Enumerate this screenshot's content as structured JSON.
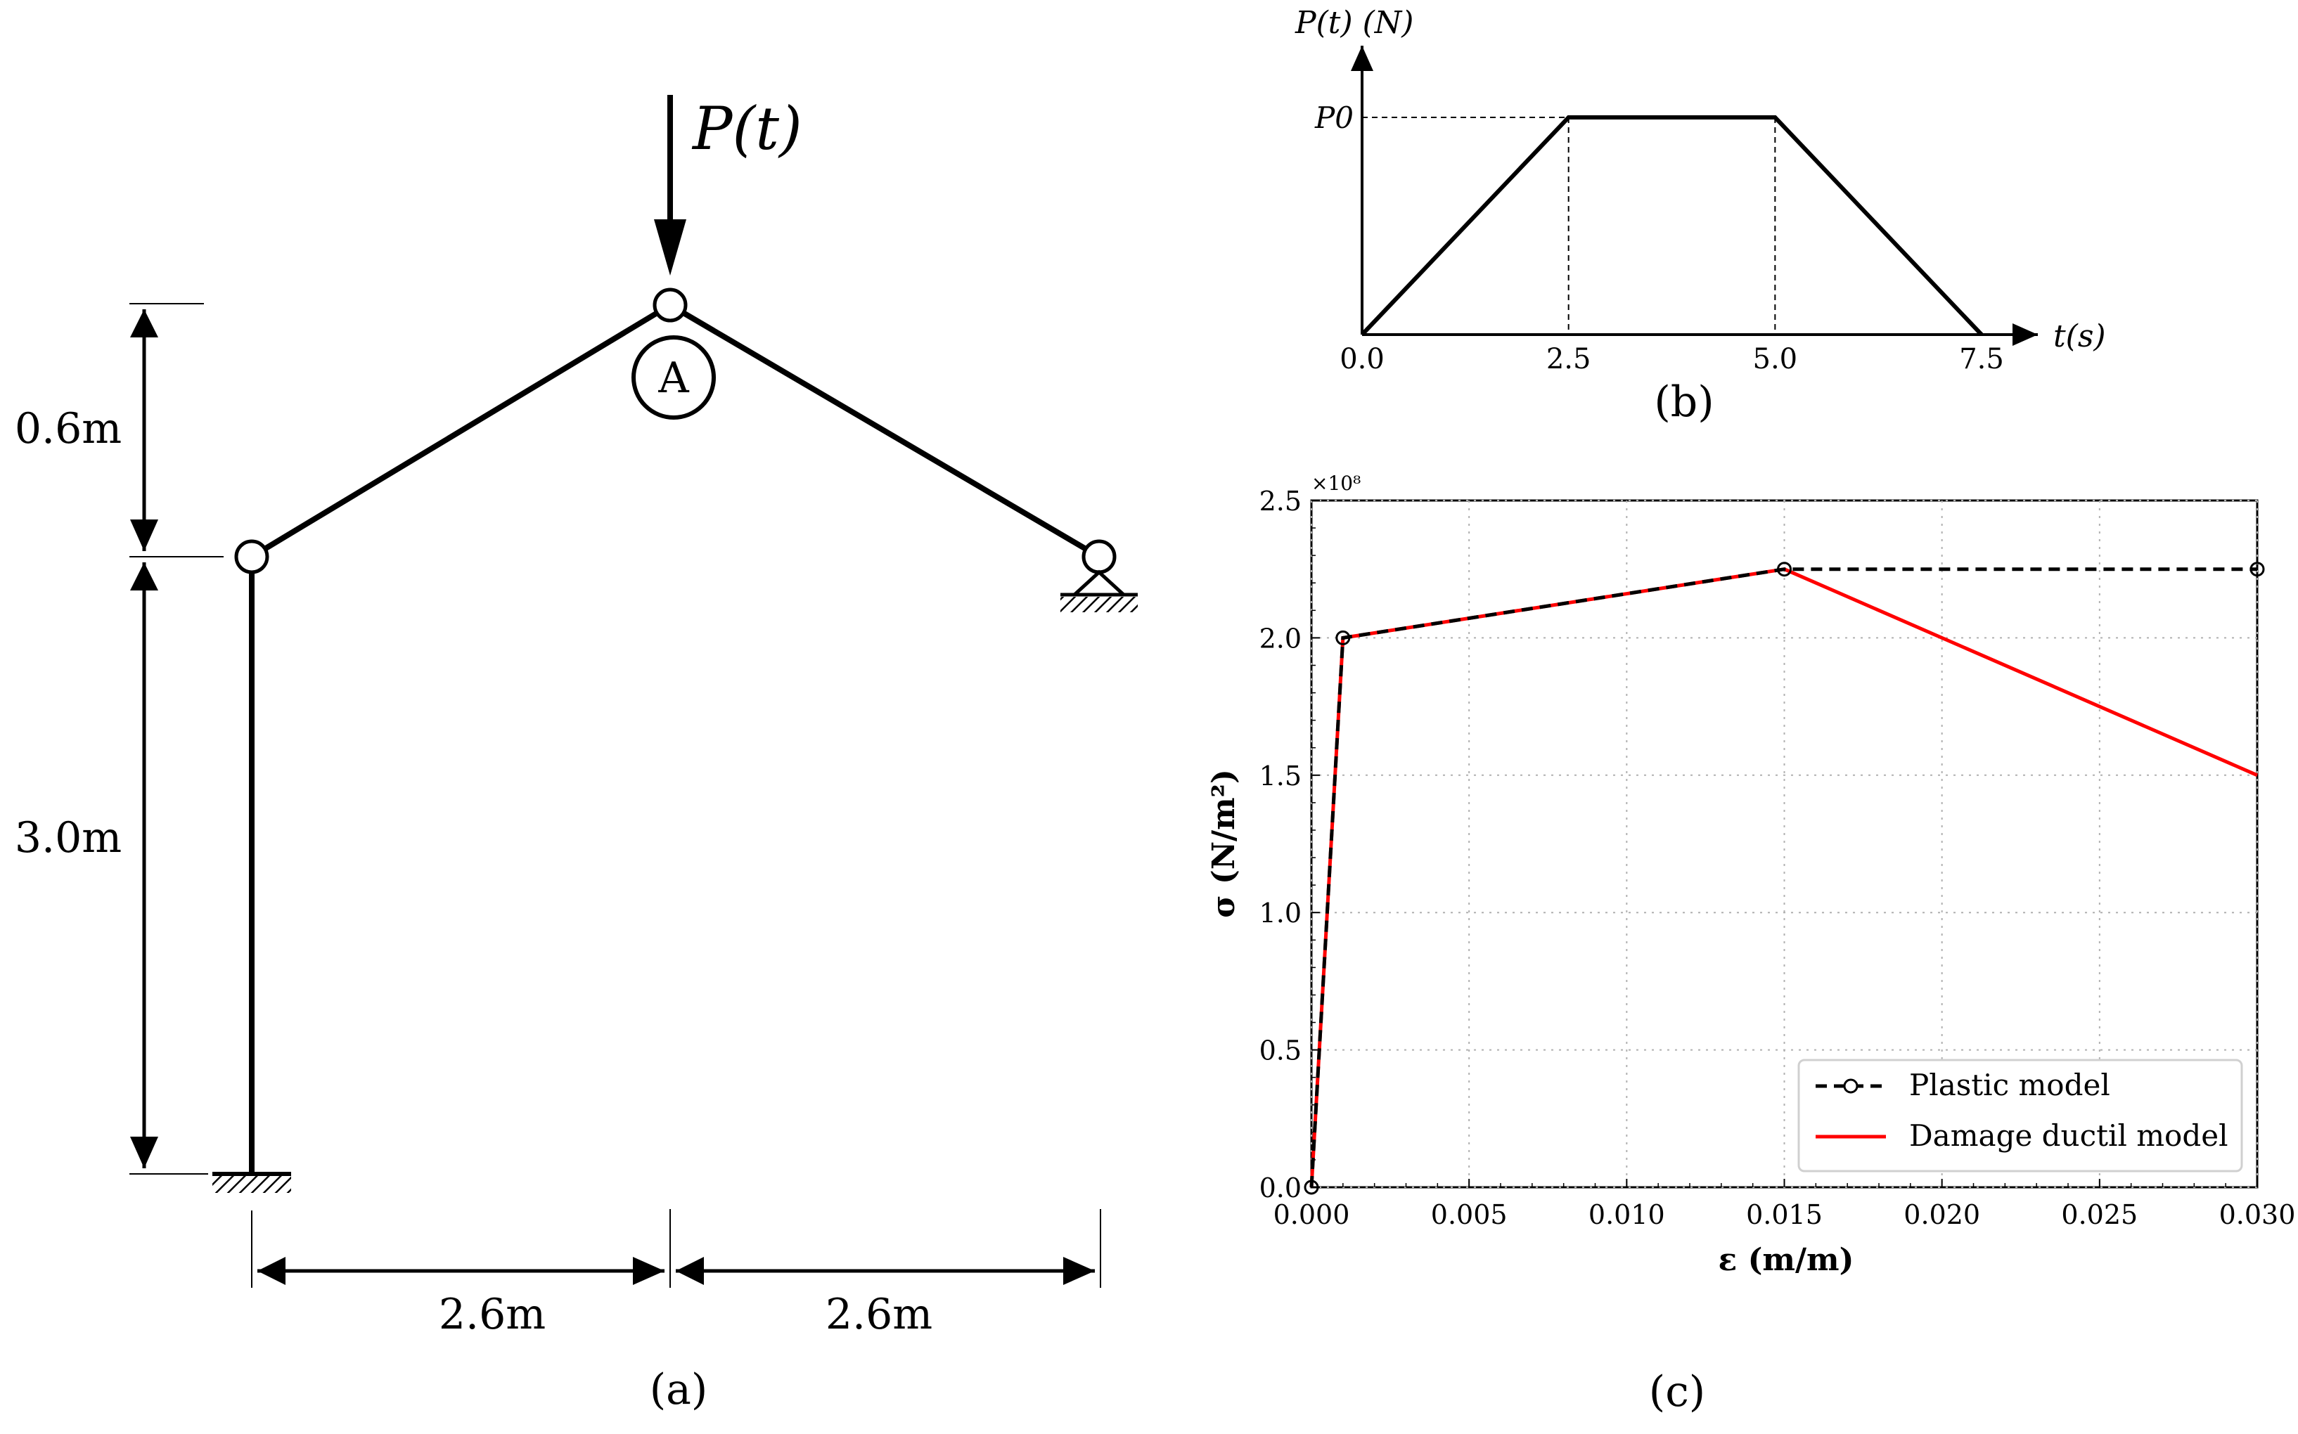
{
  "panel_a": {
    "caption": "(a)",
    "load_label": "P(t)",
    "node_label": "A",
    "dim_top_height": "0.6m",
    "dim_column_height": "3.0m",
    "dim_left_span": "2.6m",
    "dim_right_span": "2.6m"
  },
  "panel_b": {
    "caption": "(b)",
    "y_label": "P(t) (N)",
    "x_label": "t(s)",
    "peak_label": "P0",
    "x_ticks": [
      "0.0",
      "2.5",
      "5.0",
      "7.5"
    ]
  },
  "panel_c": {
    "caption": "(c)",
    "y_label": "σ (N/m²)",
    "x_label": "ε (m/m)",
    "y_multiplier": "×10⁸",
    "y_ticks": [
      "0.0",
      "0.5",
      "1.0",
      "1.5",
      "2.0",
      "2.5"
    ],
    "x_ticks": [
      "0.000",
      "0.005",
      "0.010",
      "0.015",
      "0.020",
      "0.025",
      "0.030"
    ]
  },
  "chart_data": [
    {
      "type": "line",
      "panel": "b",
      "xlabel": "t(s)",
      "ylabel": "P(t) (N)",
      "xlim": [
        0,
        7.5
      ],
      "series": [
        {
          "x": [
            0,
            2.5,
            5.0,
            7.5
          ],
          "y": [
            "0",
            "P0",
            "P0",
            "0"
          ]
        }
      ]
    },
    {
      "type": "line",
      "panel": "c",
      "xlabel": "ε (m/m)",
      "ylabel": "σ (N/m²)",
      "xlim": [
        0,
        0.03
      ],
      "ylim": [
        0,
        2.5
      ],
      "y_scale_factor": 100000000,
      "grid": true,
      "legend_position": "bottom-right",
      "series": [
        {
          "name": "Plastic model",
          "color": "#000000",
          "dash": "dashed",
          "markers": "open-circle",
          "x": [
            0.0,
            0.001,
            0.015,
            0.03
          ],
          "y": [
            0.0,
            2.0,
            2.25,
            2.25
          ]
        },
        {
          "name": "Damage ductil model",
          "color": "#ff0000",
          "dash": "solid",
          "markers": "none",
          "x": [
            0.0,
            0.001,
            0.015,
            0.03
          ],
          "y": [
            0.0,
            2.0,
            2.25,
            1.5
          ]
        }
      ]
    }
  ]
}
